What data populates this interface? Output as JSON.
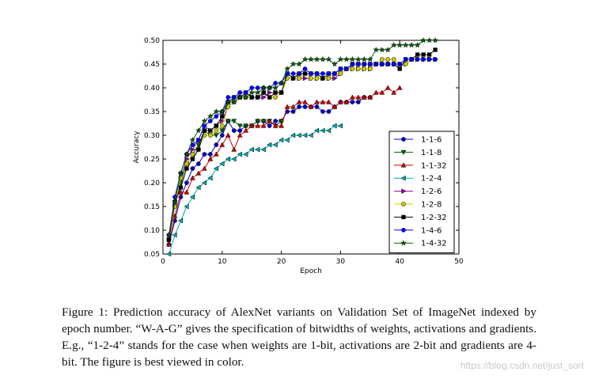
{
  "chart_data": {
    "type": "line",
    "xlabel": "Epoch",
    "ylabel": "Accuracy",
    "xlim": [
      0,
      50
    ],
    "ylim": [
      0.05,
      0.5
    ],
    "xticks": [
      "0",
      "10",
      "20",
      "30",
      "40",
      "50"
    ],
    "yticks": [
      "0.05",
      "0.10",
      "0.15",
      "0.20",
      "0.25",
      "0.30",
      "0.35",
      "0.40",
      "0.45",
      "0.50"
    ],
    "legend_position": "right",
    "series": [
      {
        "name": "1-1-6",
        "color": "#0000cc",
        "marker": "circle",
        "x": [
          1,
          2,
          3,
          4,
          5,
          6,
          7,
          8,
          9,
          10,
          11,
          12,
          13,
          14,
          15,
          16,
          17,
          18,
          19,
          20,
          21,
          22,
          23,
          24,
          25,
          26,
          27,
          28,
          29,
          30,
          31,
          32,
          33,
          34,
          35
        ],
        "values": [
          0.07,
          0.12,
          0.17,
          0.2,
          0.23,
          0.24,
          0.26,
          0.26,
          0.28,
          0.3,
          0.33,
          0.31,
          0.31,
          0.32,
          0.32,
          0.33,
          0.33,
          0.32,
          0.33,
          0.33,
          0.35,
          0.35,
          0.36,
          0.36,
          0.36,
          0.36,
          0.35,
          0.35,
          0.36,
          0.37,
          0.37,
          0.37,
          0.37,
          0.38,
          0.38
        ]
      },
      {
        "name": "1-1-8",
        "color": "#006400",
        "marker": "triangle-down",
        "x": [
          1,
          2,
          3,
          4,
          5,
          6,
          7,
          8,
          9,
          10,
          11,
          12,
          13,
          14,
          15,
          16,
          17,
          18,
          19,
          20
        ],
        "values": [
          0.08,
          0.15,
          0.2,
          0.24,
          0.26,
          0.28,
          0.31,
          0.3,
          0.3,
          0.31,
          0.33,
          0.33,
          0.32,
          0.32,
          0.32,
          0.33,
          0.33,
          0.33,
          0.32,
          0.33
        ]
      },
      {
        "name": "1-1-32",
        "color": "#cc0000",
        "marker": "triangle-up",
        "x": [
          1,
          2,
          3,
          4,
          5,
          6,
          7,
          8,
          9,
          10,
          11,
          12,
          13,
          14,
          15,
          16,
          17,
          18,
          19,
          20,
          21,
          22,
          23,
          24,
          25,
          26,
          27,
          28,
          29,
          30,
          31,
          32,
          33,
          34,
          35,
          36,
          37,
          38,
          39,
          40
        ],
        "values": [
          0.07,
          0.13,
          0.18,
          0.18,
          0.21,
          0.22,
          0.23,
          0.25,
          0.26,
          0.28,
          0.3,
          0.27,
          0.3,
          0.31,
          0.32,
          0.32,
          0.32,
          0.33,
          0.32,
          0.32,
          0.36,
          0.36,
          0.37,
          0.37,
          0.36,
          0.37,
          0.37,
          0.37,
          0.36,
          0.37,
          0.37,
          0.38,
          0.38,
          0.38,
          0.38,
          0.39,
          0.39,
          0.4,
          0.39,
          0.4
        ]
      },
      {
        "name": "1-2-4",
        "color": "#00aaaa",
        "marker": "triangle-left",
        "x": [
          1,
          2,
          3,
          4,
          5,
          6,
          7,
          8,
          9,
          10,
          11,
          12,
          13,
          14,
          15,
          16,
          17,
          18,
          19,
          20,
          21,
          22,
          23,
          24,
          25,
          26,
          27,
          28,
          29,
          30
        ],
        "values": [
          0.05,
          0.09,
          0.12,
          0.15,
          0.17,
          0.19,
          0.2,
          0.21,
          0.23,
          0.24,
          0.25,
          0.25,
          0.26,
          0.26,
          0.27,
          0.27,
          0.27,
          0.28,
          0.28,
          0.29,
          0.29,
          0.3,
          0.3,
          0.3,
          0.3,
          0.31,
          0.31,
          0.31,
          0.32,
          0.32
        ]
      },
      {
        "name": "1-2-6",
        "color": "#9900aa",
        "marker": "triangle-right",
        "x": [
          1,
          2,
          3,
          4,
          5,
          6,
          7,
          8,
          9,
          10,
          11,
          12,
          13,
          14,
          15,
          16,
          17,
          18,
          19,
          20,
          21,
          22,
          23,
          24,
          25,
          26,
          27,
          28,
          29,
          30,
          31,
          32,
          33,
          34,
          35,
          36,
          37,
          38,
          39,
          40,
          41,
          42,
          43,
          44,
          45,
          46
        ],
        "values": [
          0.08,
          0.15,
          0.21,
          0.25,
          0.27,
          0.29,
          0.32,
          0.31,
          0.32,
          0.33,
          0.36,
          0.37,
          0.38,
          0.38,
          0.38,
          0.38,
          0.38,
          0.39,
          0.39,
          0.39,
          0.42,
          0.42,
          0.42,
          0.42,
          0.42,
          0.42,
          0.42,
          0.42,
          0.42,
          0.43,
          0.44,
          0.44,
          0.44,
          0.44,
          0.44,
          0.45,
          0.45,
          0.45,
          0.45,
          0.45,
          0.45,
          0.46,
          0.46,
          0.46,
          0.46,
          0.46
        ]
      },
      {
        "name": "1-2-8",
        "color": "#cccc00",
        "marker": "circle",
        "x": [
          1,
          2,
          3,
          4,
          5,
          6,
          7,
          8,
          9,
          10,
          11,
          12,
          13,
          14,
          15,
          16,
          17,
          18,
          19,
          20,
          21,
          22,
          23,
          24,
          25,
          26,
          27,
          28,
          29,
          30,
          31,
          32,
          33,
          34,
          35,
          36,
          37,
          38,
          39,
          40,
          41,
          42,
          43,
          44,
          45,
          46
        ],
        "values": [
          0.08,
          0.15,
          0.21,
          0.24,
          0.26,
          0.27,
          0.3,
          0.3,
          0.31,
          0.32,
          0.36,
          0.37,
          0.38,
          0.38,
          0.38,
          0.38,
          0.39,
          0.38,
          0.38,
          0.39,
          0.42,
          0.42,
          0.42,
          0.43,
          0.42,
          0.42,
          0.42,
          0.42,
          0.43,
          0.43,
          0.44,
          0.44,
          0.44,
          0.44,
          0.44,
          0.45,
          0.46,
          0.46,
          0.46,
          0.45,
          0.45,
          0.46,
          0.46,
          0.46,
          0.46,
          0.46
        ]
      },
      {
        "name": "1-2-32",
        "color": "#000000",
        "marker": "square",
        "x": [
          1,
          2,
          3,
          4,
          5,
          6,
          7,
          8,
          9,
          10,
          11,
          12,
          13,
          14,
          15,
          16,
          17,
          18,
          19,
          20,
          21,
          22,
          23,
          24,
          25,
          26,
          27,
          28,
          29,
          30,
          31,
          32,
          33,
          34,
          35,
          36,
          37,
          38,
          39,
          40,
          41,
          42,
          43,
          44,
          45,
          46
        ],
        "values": [
          0.08,
          0.16,
          0.19,
          0.23,
          0.25,
          0.27,
          0.31,
          0.31,
          0.32,
          0.34,
          0.37,
          0.38,
          0.38,
          0.39,
          0.38,
          0.38,
          0.39,
          0.38,
          0.39,
          0.39,
          0.43,
          0.42,
          0.43,
          0.43,
          0.43,
          0.43,
          0.42,
          0.43,
          0.43,
          0.44,
          0.44,
          0.45,
          0.45,
          0.45,
          0.45,
          0.45,
          0.45,
          0.45,
          0.45,
          0.44,
          0.46,
          0.46,
          0.47,
          0.47,
          0.47,
          0.48
        ]
      },
      {
        "name": "1-4-6",
        "color": "#0000ff",
        "marker": "circle",
        "x": [
          1,
          2,
          3,
          4,
          5,
          6,
          7,
          8,
          9,
          10,
          11,
          12,
          13,
          14,
          15,
          16,
          17,
          18,
          19,
          20,
          21,
          22,
          23,
          24,
          25,
          26,
          27,
          28,
          29,
          30,
          31,
          32,
          33,
          34,
          35,
          36,
          37,
          38,
          39,
          40,
          41,
          42,
          43,
          44,
          45,
          46
        ],
        "values": [
          0.09,
          0.17,
          0.22,
          0.26,
          0.28,
          0.29,
          0.32,
          0.33,
          0.34,
          0.35,
          0.38,
          0.38,
          0.39,
          0.39,
          0.4,
          0.4,
          0.4,
          0.4,
          0.41,
          0.41,
          0.43,
          0.43,
          0.43,
          0.44,
          0.43,
          0.43,
          0.43,
          0.43,
          0.43,
          0.44,
          0.44,
          0.45,
          0.45,
          0.45,
          0.45,
          0.45,
          0.45,
          0.45,
          0.45,
          0.45,
          0.46,
          0.46,
          0.46,
          0.46,
          0.46,
          0.46
        ]
      },
      {
        "name": "1-4-32",
        "color": "#006400",
        "marker": "star",
        "x": [
          1,
          2,
          3,
          4,
          5,
          6,
          7,
          8,
          9,
          10,
          11,
          12,
          13,
          14,
          15,
          16,
          17,
          18,
          19,
          20,
          21,
          22,
          23,
          24,
          25,
          26,
          27,
          28,
          29,
          30,
          31,
          32,
          33,
          34,
          35,
          36,
          37,
          38,
          39,
          40,
          41,
          42,
          43,
          44,
          45,
          46
        ],
        "values": [
          0.09,
          0.16,
          0.22,
          0.26,
          0.29,
          0.31,
          0.33,
          0.34,
          0.35,
          0.35,
          0.37,
          0.37,
          0.38,
          0.38,
          0.39,
          0.39,
          0.4,
          0.4,
          0.4,
          0.41,
          0.44,
          0.45,
          0.45,
          0.46,
          0.46,
          0.46,
          0.46,
          0.46,
          0.45,
          0.46,
          0.46,
          0.46,
          0.46,
          0.46,
          0.46,
          0.48,
          0.48,
          0.48,
          0.49,
          0.49,
          0.49,
          0.49,
          0.49,
          0.5,
          0.5,
          0.5
        ]
      }
    ]
  },
  "caption": {
    "text": "Figure 1: Prediction accuracy of AlexNet variants on Validation Set of ImageNet indexed by epoch number. “W-A-G” gives the specification of bitwidths of weights, activations and gradients. E.g., “1-2-4” stands for the case when weights are 1-bit, activations are 2-bit and gradients are 4-bit. The figure is best viewed in color."
  },
  "watermark": "https://blog.csdn.net/just_sort"
}
